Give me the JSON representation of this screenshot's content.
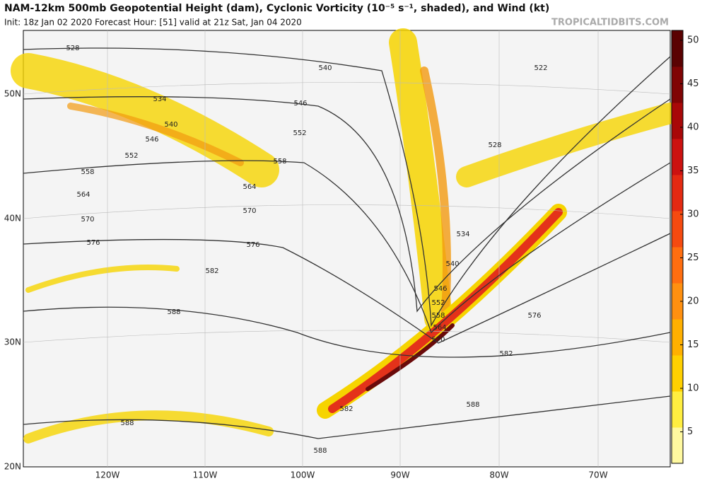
{
  "header": {
    "title": "NAM-12km 500mb Geopotential Height (dam), Cyclonic Vorticity (10⁻⁵ s⁻¹, shaded), and Wind (kt)",
    "subtitle": "Init: 18z Jan 02 2020   Forecast Hour: [51]   valid at 21z Sat, Jan 04 2020",
    "brand": "TROPICALTIDBITS.COM"
  },
  "colorbar": {
    "labels": [
      "50",
      "45",
      "40",
      "35",
      "30",
      "25",
      "20",
      "15",
      "10",
      "5"
    ]
  },
  "map": {
    "lat_labels": [
      "50N",
      "40N",
      "30N",
      "20N"
    ],
    "lon_labels": [
      "120W",
      "110W",
      "100W",
      "90W",
      "80W",
      "70W"
    ],
    "contour_labels": [
      "528",
      "534",
      "540",
      "546",
      "552",
      "558",
      "564",
      "570",
      "576",
      "582",
      "588",
      "588",
      "540",
      "546",
      "552",
      "558",
      "564",
      "570",
      "576",
      "522",
      "528",
      "534",
      "540",
      "546",
      "552",
      "558",
      "564",
      "570",
      "576",
      "582",
      "582",
      "588",
      "588"
    ]
  }
}
